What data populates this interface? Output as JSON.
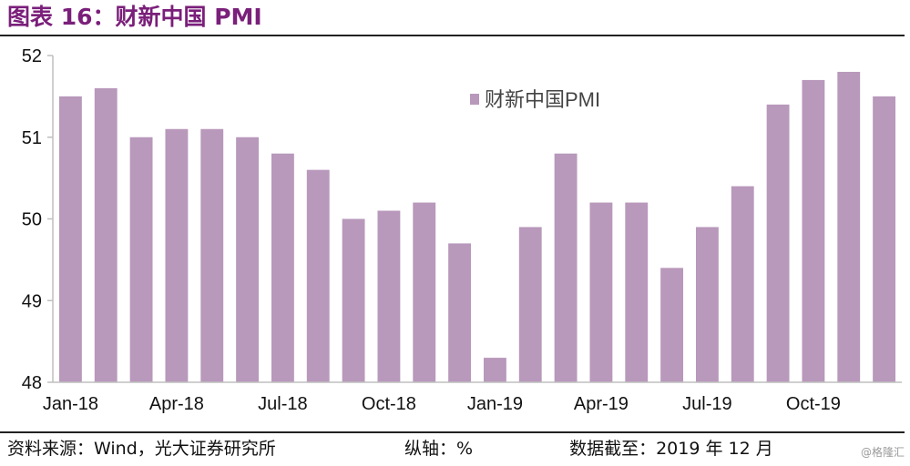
{
  "header": {
    "title": "图表 16：财新中国 PMI"
  },
  "footer": {
    "source": "资料来源：Wind，光大证券研究所",
    "axis_unit": "纵轴：%",
    "data_cutoff": "数据截至：2019 年 12 月"
  },
  "watermark": "@格隆汇",
  "colors": {
    "bar": "#b898bb",
    "title": "#7a1f7a",
    "axis": "#bfbfbf"
  },
  "chart_data": {
    "type": "bar",
    "title": "",
    "xlabel": "",
    "ylabel": "",
    "ylim": [
      48,
      52
    ],
    "yticks": [
      48,
      49,
      50,
      51,
      52
    ],
    "grid": false,
    "legend_position": "top-right",
    "categories": [
      "Jan-18",
      "Feb-18",
      "Mar-18",
      "Apr-18",
      "May-18",
      "Jun-18",
      "Jul-18",
      "Aug-18",
      "Sep-18",
      "Oct-18",
      "Nov-18",
      "Dec-18",
      "Jan-19",
      "Feb-19",
      "Mar-19",
      "Apr-19",
      "May-19",
      "Jun-19",
      "Jul-19",
      "Aug-19",
      "Sep-19",
      "Oct-19",
      "Nov-19",
      "Dec-19"
    ],
    "x_tick_labels": [
      "Jan-18",
      "",
      "",
      "Apr-18",
      "",
      "",
      "Jul-18",
      "",
      "",
      "Oct-18",
      "",
      "",
      "Jan-19",
      "",
      "",
      "Apr-19",
      "",
      "",
      "Jul-19",
      "",
      "",
      "Oct-19",
      "",
      ""
    ],
    "series": [
      {
        "name": "财新中国PMI",
        "values": [
          51.5,
          51.6,
          51.0,
          51.1,
          51.1,
          51.0,
          50.8,
          50.6,
          50.0,
          50.1,
          50.2,
          49.7,
          48.3,
          49.9,
          50.8,
          50.2,
          50.2,
          49.4,
          49.9,
          50.4,
          51.4,
          51.7,
          51.8,
          51.5
        ]
      }
    ]
  }
}
